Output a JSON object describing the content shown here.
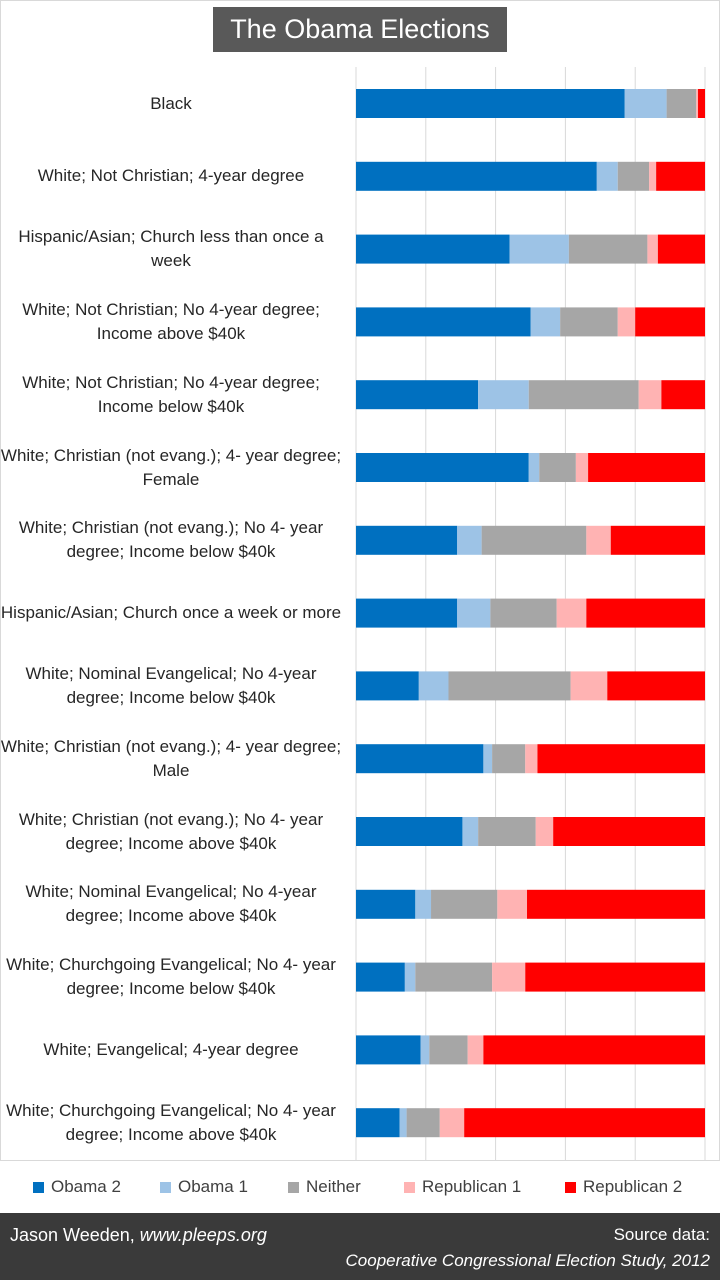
{
  "title": "The Obama Elections",
  "legend": [
    {
      "label": "Obama 2",
      "color": "#0070c0"
    },
    {
      "label": "Obama 1",
      "color": "#9dc3e6"
    },
    {
      "label": "Neither",
      "color": "#a6a6a6"
    },
    {
      "label": "Republican 1",
      "color": "#ffb3b3"
    },
    {
      "label": "Republican 2",
      "color": "#ff0000"
    }
  ],
  "chart_data": {
    "type": "bar",
    "orientation": "horizontal",
    "stacked": true,
    "xlim": [
      0,
      100
    ],
    "grid": true,
    "legend_position": "bottom",
    "categories": [
      "Black",
      "White; Not Christian; 4-year degree",
      "Hispanic/Asian; Church less than once a week",
      "White; Not Christian; No 4-year degree; Income above $40k",
      "White; Not Christian; No 4-year degree; Income below $40k",
      "White; Christian (not evang.); 4- year degree; Female",
      "White; Christian (not evang.); No 4- year degree; Income below $40k",
      "Hispanic/Asian; Church once a week or more",
      "White; Nominal Evangelical; No 4-year degree; Income below $40k",
      "White; Christian (not evang.); 4- year degree; Male",
      "White; Christian (not evang.); No 4- year degree; Income above $40k",
      "White; Nominal Evangelical; No 4-year degree; Income above $40k",
      "White; Churchgoing Evangelical; No 4- year degree; Income below $40k",
      "White; Evangelical; 4-year degree",
      "White; Churchgoing Evangelical; No 4- year degree; Income above $40k"
    ],
    "series": [
      {
        "name": "Obama 2",
        "color": "#0070c0",
        "values": [
          77,
          69,
          44,
          50,
          35,
          49.5,
          29,
          29,
          18,
          36.5,
          30.5,
          17,
          14,
          18.5,
          12.5
        ]
      },
      {
        "name": "Obama 1",
        "color": "#9dc3e6",
        "values": [
          12,
          6,
          17,
          8.5,
          14.5,
          3,
          7,
          9.5,
          8.5,
          2.5,
          4.5,
          4.5,
          3,
          2.5,
          2
        ]
      },
      {
        "name": "Neither",
        "color": "#a6a6a6",
        "values": [
          8.5,
          9,
          22.5,
          16.5,
          31.5,
          10.5,
          30,
          19,
          35,
          9.5,
          16.5,
          19,
          22,
          11,
          9.5
        ]
      },
      {
        "name": "Republican 1",
        "color": "#ffb3b3",
        "values": [
          0.5,
          2,
          3,
          5,
          6.5,
          3.5,
          7,
          8.5,
          10.5,
          3.5,
          5,
          8.5,
          9.5,
          4.5,
          7
        ]
      },
      {
        "name": "Republican 2",
        "color": "#ff0000",
        "values": [
          2,
          14,
          13.5,
          20,
          12.5,
          33.5,
          27,
          34,
          28,
          48,
          43.5,
          51,
          51.5,
          63.5,
          69
        ]
      }
    ]
  },
  "footer": {
    "author": "Jason Weeden, ",
    "site": "www.pleeps.org",
    "source_label": "Source data:",
    "source": "Cooperative Congressional Election Study, 2012"
  }
}
